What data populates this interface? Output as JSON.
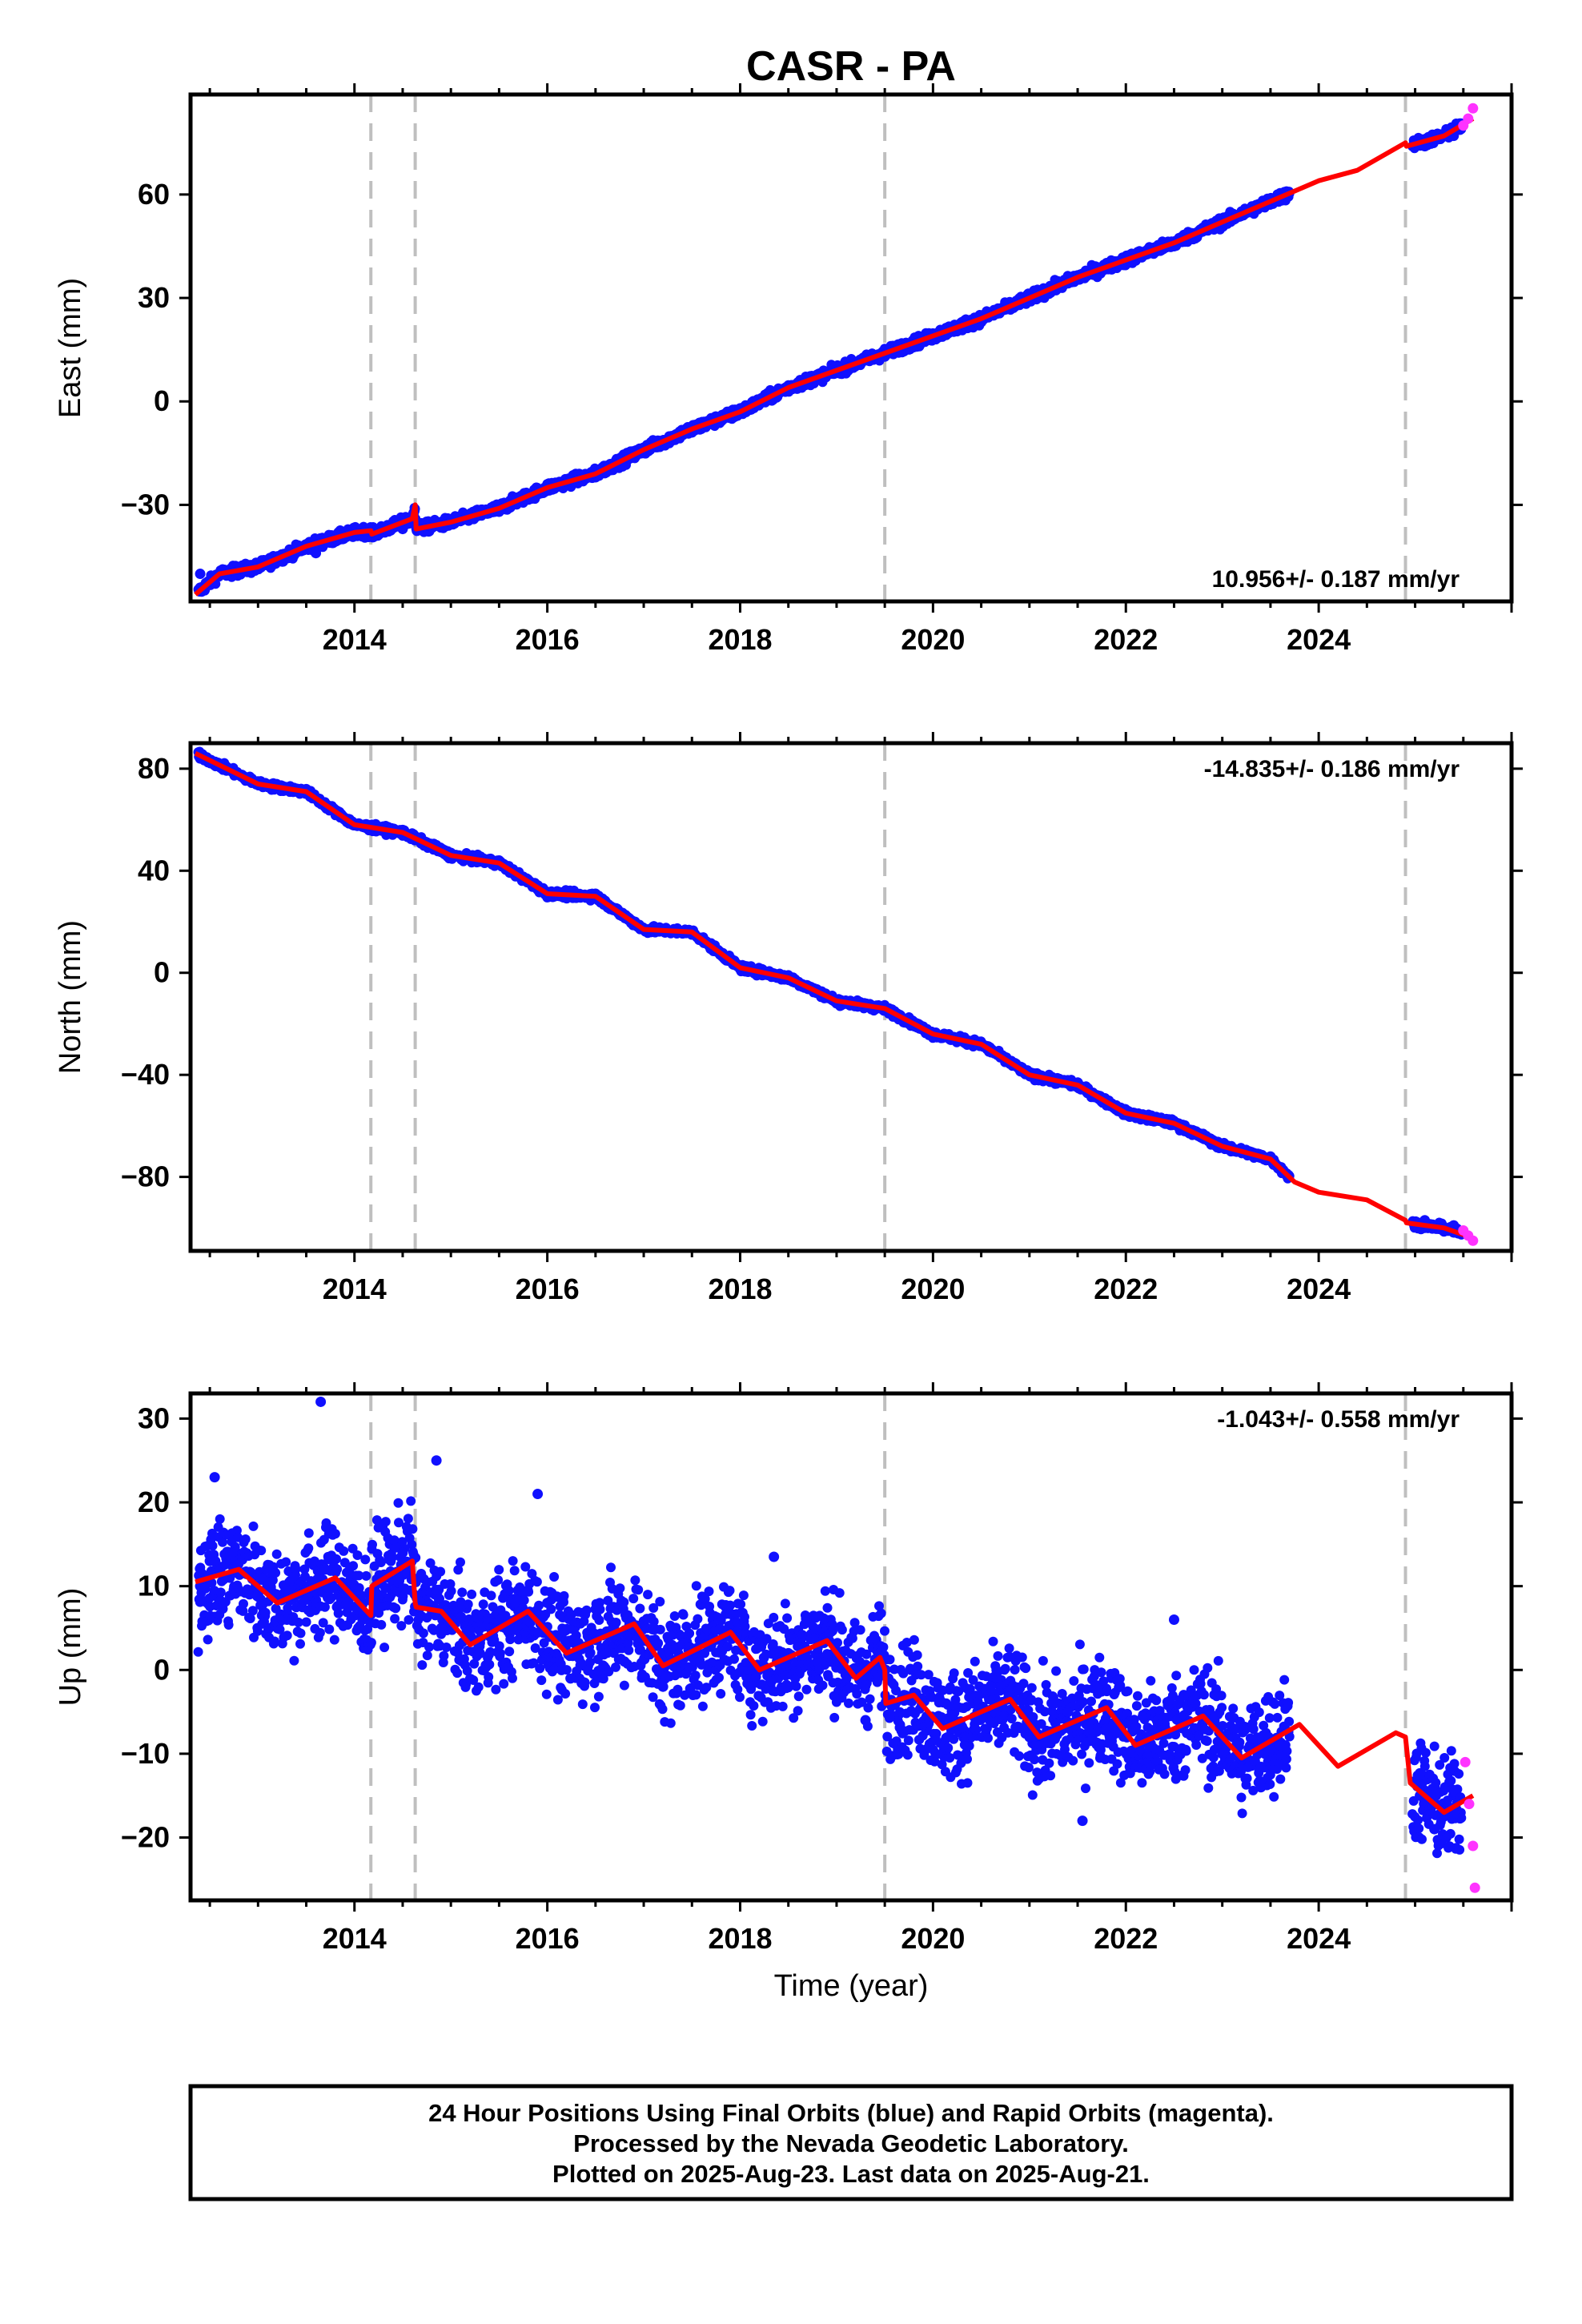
{
  "title": "CASR - PA",
  "colors": {
    "final_orbits": "#1010ff",
    "rapid_orbits": "#ff33ff",
    "model": "#ff0000",
    "event_lines": "#bfbfbf",
    "frame": "#000000"
  },
  "xaxis": {
    "label": "Time (year)",
    "range": [
      2012.3,
      2026.0
    ],
    "ticks": [
      "2014",
      "2016",
      "2018",
      "2020",
      "2022",
      "2024"
    ],
    "minor_tick_step_years": 0.5
  },
  "event_lines_years": [
    2014.17,
    2014.63,
    2019.5,
    2024.9
  ],
  "footer": {
    "line1": "24 Hour Positions Using Final Orbits (blue) and Rapid Orbits (magenta).",
    "line2": "Processed by the Nevada Geodetic Laboratory.",
    "line3": "Plotted on 2025-Aug-23. Last data on 2025-Aug-21."
  },
  "chart_data": [
    {
      "type": "scatter",
      "id": "east",
      "ylabel": "East (mm)",
      "ylim": [
        -58,
        89
      ],
      "yticks": [
        "60",
        "30",
        "0",
        "−30"
      ],
      "rate_label": "10.956+/- 0.187 mm/yr",
      "rate_position": "bottom-right",
      "data_gap": [
        2023.7,
        2024.97
      ],
      "model_line": {
        "x": [
          2012.35,
          2012.6,
          2013.0,
          2013.5,
          2014.0,
          2014.17,
          2014.18,
          2014.6,
          2014.63,
          2014.64,
          2015.0,
          2015.5,
          2016.0,
          2016.5,
          2017.0,
          2017.5,
          2018.0,
          2018.5,
          2019.0,
          2019.5,
          2020.0,
          2020.5,
          2021.0,
          2021.5,
          2022.0,
          2022.5,
          2023.0,
          2023.5,
          2024.0,
          2024.4,
          2024.9,
          2024.91,
          2025.3,
          2025.6
        ],
        "y": [
          -56,
          -50,
          -48,
          -42,
          -38,
          -37.5,
          -38.5,
          -34,
          -30,
          -37,
          -35,
          -31,
          -25,
          -21,
          -14,
          -8,
          -3,
          4,
          9,
          14,
          19,
          24,
          30,
          36,
          41,
          46,
          52,
          58,
          64,
          67,
          75,
          74,
          77,
          82
        ]
      },
      "final_orbits": {
        "x": [
          2012.4,
          2013.0,
          2013.6,
          2014.0,
          2014.5,
          2015.0,
          2015.5,
          2016.0,
          2016.5,
          2017.0,
          2017.5,
          2018.0,
          2018.5,
          2019.0,
          2019.5,
          2020.0,
          2020.5,
          2021.0,
          2021.5,
          2022.0,
          2022.5,
          2023.0,
          2023.5,
          2025.1,
          2025.4
        ],
        "y": [
          -50,
          -48,
          -44,
          -38,
          -37,
          -35,
          -32,
          -25,
          -22,
          -14,
          -9,
          -2,
          3,
          9,
          13,
          19,
          23,
          30,
          36,
          41,
          45,
          52,
          58,
          74,
          77
        ]
      },
      "rapid_orbits": {
        "x": [
          2025.5,
          2025.55,
          2025.6
        ],
        "y": [
          80,
          82,
          85
        ]
      }
    },
    {
      "type": "scatter",
      "id": "north",
      "ylabel": "North (mm)",
      "ylim": [
        -109,
        90
      ],
      "yticks": [
        "80",
        "40",
        "0",
        "−40",
        "−80"
      ],
      "rate_label": "-14.835+/- 0.186 mm/yr",
      "rate_position": "top-right",
      "data_gap": [
        2023.7,
        2024.97
      ],
      "model_line": {
        "x": [
          2012.35,
          2013.0,
          2013.5,
          2014.0,
          2014.5,
          2015.0,
          2015.5,
          2016.0,
          2016.5,
          2017.0,
          2017.5,
          2018.0,
          2018.5,
          2019.0,
          2019.5,
          2020.0,
          2020.5,
          2021.0,
          2021.5,
          2022.0,
          2022.5,
          2023.0,
          2023.5,
          2023.75,
          2024.0,
          2024.5,
          2024.9,
          2024.91,
          2025.3,
          2025.6
        ],
        "y": [
          86,
          74,
          71,
          58,
          55,
          46,
          43,
          31,
          30,
          17,
          16,
          2,
          -2,
          -11,
          -14,
          -24,
          -28,
          -40,
          -44,
          -55,
          -59,
          -68,
          -73,
          -82,
          -86,
          -89,
          -97,
          -98,
          -100,
          -104
        ]
      },
      "final_orbits": {
        "x": [
          2012.4,
          2013.0,
          2013.5,
          2014.0,
          2014.5,
          2015.0,
          2015.5,
          2016.0,
          2016.5,
          2017.0,
          2017.5,
          2018.0,
          2018.5,
          2019.0,
          2019.5,
          2020.0,
          2020.5,
          2021.0,
          2021.5,
          2022.0,
          2022.5,
          2023.0,
          2023.5,
          2025.1,
          2025.4
        ],
        "y": [
          84,
          75,
          72,
          58,
          56,
          47,
          44,
          31,
          31,
          17,
          15,
          2,
          -1,
          -12,
          -14,
          -25,
          -28,
          -40,
          -44,
          -55,
          -59,
          -68,
          -72,
          -97,
          -99
        ]
      },
      "rapid_orbits": {
        "x": [
          2025.5,
          2025.55,
          2025.6
        ],
        "y": [
          -101,
          -103,
          -105
        ]
      }
    },
    {
      "type": "scatter",
      "id": "up",
      "ylabel": "Up (mm)",
      "ylim": [
        -27.5,
        33
      ],
      "yticks": [
        "30",
        "20",
        "10",
        "0",
        "−10",
        "−20"
      ],
      "rate_label": "-1.043+/- 0.558 mm/yr",
      "rate_position": "top-right",
      "data_gap": [
        2023.7,
        2024.97
      ],
      "model_line": {
        "x": [
          2012.35,
          2012.8,
          2013.2,
          2013.8,
          2014.17,
          2014.18,
          2014.6,
          2014.63,
          2014.64,
          2014.9,
          2015.2,
          2015.8,
          2016.2,
          2016.9,
          2017.2,
          2017.9,
          2018.2,
          2018.9,
          2019.2,
          2019.45,
          2019.5,
          2019.51,
          2019.8,
          2020.1,
          2020.8,
          2021.1,
          2021.8,
          2022.1,
          2022.8,
          2023.2,
          2023.8,
          2024.2,
          2024.8,
          2024.9,
          2024.95,
          2025.3,
          2025.6
        ],
        "y": [
          10.5,
          12,
          8,
          11,
          6.5,
          10,
          13,
          8,
          7.5,
          7,
          3,
          7,
          2,
          5.5,
          0.5,
          4.5,
          0,
          3.5,
          -1,
          1.5,
          0,
          -4,
          -3,
          -7,
          -3.5,
          -8,
          -4.5,
          -9,
          -5.5,
          -10.5,
          -6.5,
          -11.5,
          -7.5,
          -8,
          -13.5,
          -17,
          -15
        ]
      },
      "final_orbits": {
        "x": [
          2012.4,
          2012.5,
          2013.0,
          2013.3,
          2013.7,
          2014.2,
          2014.5,
          2014.9,
          2015.3,
          2015.7,
          2016.0,
          2016.3,
          2016.8,
          2017.2,
          2017.7,
          2018.1,
          2018.5,
          2018.8,
          2019.3,
          2019.7,
          2020.2,
          2020.6,
          2021.0,
          2021.4,
          2021.8,
          2022.2,
          2022.6,
          2023.0,
          2023.4,
          2023.6,
          2025.05,
          2025.2,
          2025.4,
          2013.65,
          2012.55,
          2014.85,
          2015.9,
          2018.35,
          2021.55,
          2022.5
        ],
        "y": [
          10,
          13,
          9,
          6,
          12,
          7,
          14,
          5,
          2,
          6,
          8,
          3,
          1,
          -2,
          3,
          0,
          2,
          1,
          -6,
          -3,
          -6,
          -2,
          -8,
          -5,
          -7,
          -8,
          -3,
          -10,
          -14,
          -9,
          -15,
          -19,
          -17,
          32,
          23,
          25,
          21,
          13.5,
          -18,
          6
        ]
      },
      "rapid_orbits": {
        "x": [
          2025.52,
          2025.56,
          2025.6,
          2025.62
        ],
        "y": [
          -11,
          -16,
          -21,
          -26
        ]
      }
    }
  ]
}
